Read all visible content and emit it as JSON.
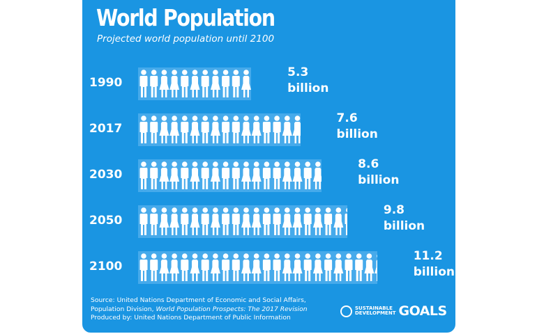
{
  "chart_data": {
    "type": "bar",
    "orientation": "horizontal",
    "style": "pictogram",
    "title": "World Population",
    "subtitle": "Projected world population until 2100",
    "categories": [
      "1990",
      "2017",
      "2030",
      "2050",
      "2100"
    ],
    "values": [
      5.3,
      7.6,
      8.6,
      9.8,
      11.2
    ],
    "value_labels": [
      "5.3",
      "7.6",
      "8.6",
      "9.8",
      "11.2"
    ],
    "unit": "billion",
    "xlabel": "",
    "ylabel": ""
  },
  "footer": {
    "source_line1": "Source: United Nations Department of Economic and Social Affairs,",
    "source_line2_plain": "Population Division, ",
    "source_line2_italic": "World Population Prospects: The 2017 Revision",
    "source_line3": "Produced by: United Nations Department of Public Information",
    "logo_line1": "SUSTAINABLE",
    "logo_line2": "DEVELOPMENT",
    "logo_goals": "GOALS"
  },
  "colors": {
    "background": "#1a95e2",
    "band": "#46aaeb",
    "figure": "#ffffff"
  }
}
